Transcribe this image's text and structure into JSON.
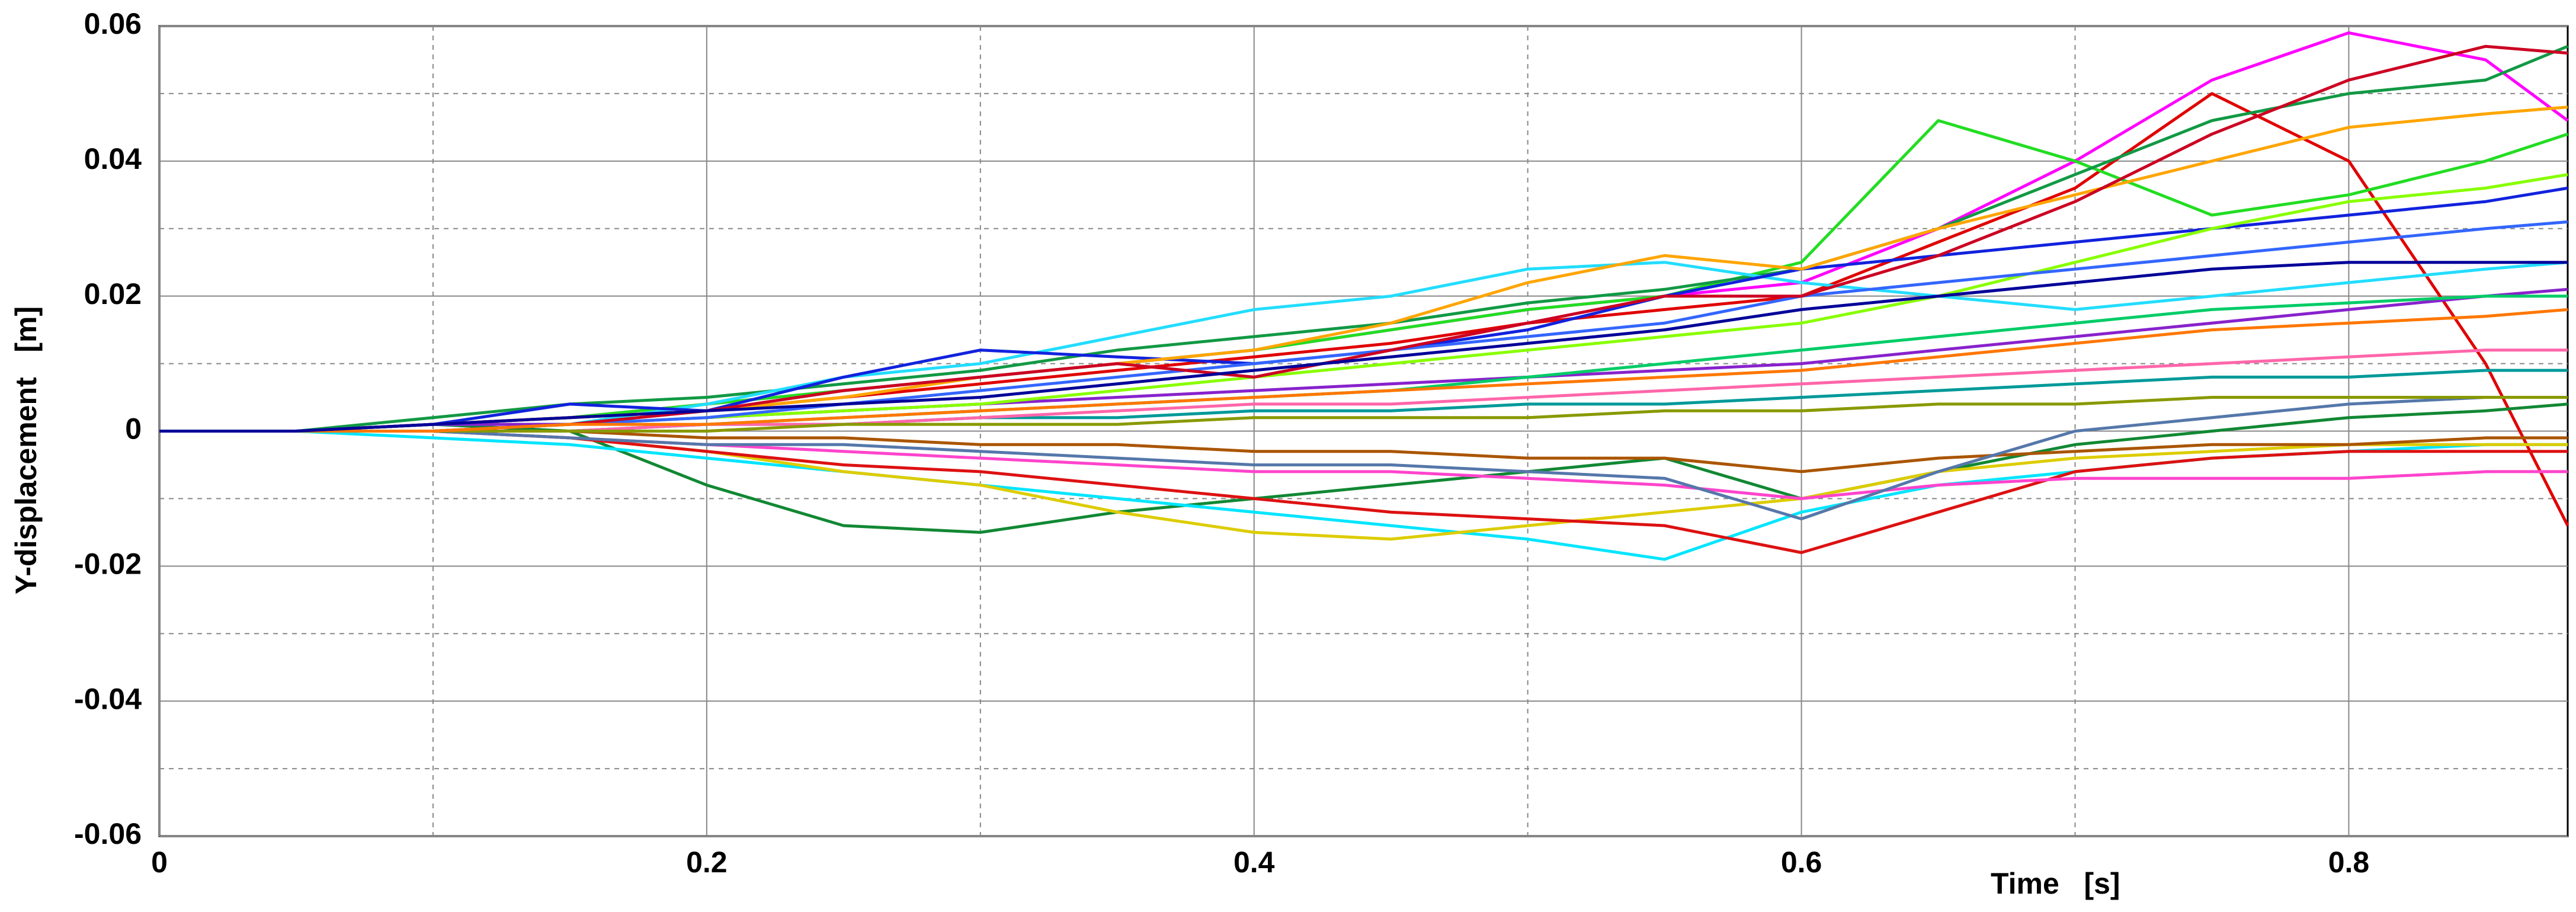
{
  "chart_data": {
    "type": "line",
    "xlabel": "Time   [s]",
    "ylabel": "Y-displacement   [m]",
    "xlim": [
      0,
      0.88
    ],
    "ylim": [
      -0.06,
      0.06
    ],
    "xticks": [
      0,
      0.2,
      0.4,
      0.6,
      0.8
    ],
    "yticks": [
      -0.06,
      -0.04,
      -0.02,
      0,
      0.02,
      0.04,
      0.06
    ],
    "xminorticks": [
      0.1,
      0.3,
      0.5,
      0.7
    ],
    "yminorticks": [
      -0.05,
      -0.03,
      -0.01,
      0.01,
      0.03,
      0.05
    ],
    "grid": true,
    "x": [
      0,
      0.05,
      0.1,
      0.15,
      0.2,
      0.25,
      0.3,
      0.35,
      0.4,
      0.45,
      0.5,
      0.55,
      0.6,
      0.65,
      0.7,
      0.75,
      0.8,
      0.85,
      0.88
    ],
    "series": [
      {
        "color": "#ff00ff",
        "values": [
          0,
          0,
          0.001,
          0.002,
          0.004,
          0.006,
          0.008,
          0.01,
          0.012,
          0.015,
          0.018,
          0.02,
          0.022,
          0.03,
          0.04,
          0.052,
          0.059,
          0.055,
          0.046
        ]
      },
      {
        "color": "#e00000",
        "values": [
          0,
          0,
          0.001,
          0.002,
          0.003,
          0.005,
          0.007,
          0.009,
          0.011,
          0.013,
          0.016,
          0.018,
          0.02,
          0.028,
          0.036,
          0.05,
          0.04,
          0.01,
          -0.014
        ]
      },
      {
        "color": "#22dd22",
        "values": [
          0,
          0,
          0.001,
          0.002,
          0.004,
          0.006,
          0.008,
          0.01,
          0.012,
          0.015,
          0.018,
          0.02,
          0.025,
          0.046,
          0.04,
          0.032,
          0.035,
          0.04,
          0.044
        ]
      },
      {
        "color": "#118833",
        "values": [
          0,
          0,
          0.001,
          0,
          -0.008,
          -0.014,
          -0.015,
          -0.012,
          -0.01,
          -0.008,
          -0.006,
          -0.004,
          -0.01,
          -0.006,
          -0.002,
          0,
          0.002,
          0.003,
          0.004
        ]
      },
      {
        "color": "#119944",
        "values": [
          0,
          0,
          0.002,
          0.004,
          0.005,
          0.007,
          0.009,
          0.012,
          0.014,
          0.016,
          0.019,
          0.021,
          0.024,
          0.03,
          0.038,
          0.046,
          0.05,
          0.052,
          0.057
        ]
      },
      {
        "color": "#22ddff",
        "values": [
          0,
          0,
          0.001,
          0.001,
          0.004,
          0.008,
          0.01,
          0.014,
          0.018,
          0.02,
          0.024,
          0.025,
          0.022,
          0.02,
          0.018,
          0.02,
          0.022,
          0.024,
          0.025
        ]
      },
      {
        "color": "#00e5ff",
        "values": [
          0,
          0,
          -0.001,
          -0.002,
          -0.004,
          -0.006,
          -0.008,
          -0.01,
          -0.012,
          -0.014,
          -0.016,
          -0.019,
          -0.012,
          -0.008,
          -0.006,
          -0.004,
          -0.003,
          -0.002,
          -0.002
        ]
      },
      {
        "color": "#ddcc00",
        "values": [
          0,
          0,
          0,
          -0.001,
          -0.003,
          -0.006,
          -0.008,
          -0.012,
          -0.015,
          -0.016,
          -0.014,
          -0.012,
          -0.01,
          -0.006,
          -0.004,
          -0.003,
          -0.002,
          -0.002,
          -0.002
        ]
      },
      {
        "color": "#1122dd",
        "values": [
          0,
          0,
          0.001,
          0.004,
          0.003,
          0.008,
          0.012,
          0.011,
          0.01,
          0.012,
          0.015,
          0.02,
          0.024,
          0.026,
          0.028,
          0.03,
          0.032,
          0.034,
          0.036
        ]
      },
      {
        "color": "#dd1111",
        "values": [
          0,
          0,
          0,
          -0.001,
          -0.003,
          -0.005,
          -0.006,
          -0.008,
          -0.01,
          -0.012,
          -0.013,
          -0.014,
          -0.018,
          -0.012,
          -0.006,
          -0.004,
          -0.003,
          -0.003,
          -0.003
        ]
      },
      {
        "color": "#ffa500",
        "values": [
          0,
          0,
          0.001,
          0.002,
          0.003,
          0.005,
          0.008,
          0.01,
          0.012,
          0.016,
          0.022,
          0.026,
          0.024,
          0.03,
          0.035,
          0.04,
          0.045,
          0.047,
          0.048
        ]
      },
      {
        "color": "#ff44cc",
        "values": [
          0,
          0,
          0,
          -0.001,
          -0.002,
          -0.003,
          -0.004,
          -0.005,
          -0.006,
          -0.006,
          -0.007,
          -0.008,
          -0.01,
          -0.008,
          -0.007,
          -0.007,
          -0.007,
          -0.006,
          -0.006
        ]
      },
      {
        "color": "#8822cc",
        "values": [
          0,
          0,
          0.001,
          0.001,
          0.002,
          0.003,
          0.004,
          0.005,
          0.006,
          0.007,
          0.008,
          0.009,
          0.01,
          0.012,
          0.014,
          0.016,
          0.018,
          0.02,
          0.021
        ]
      },
      {
        "color": "#88ff00",
        "values": [
          0,
          0,
          0,
          0.001,
          0.002,
          0.003,
          0.004,
          0.006,
          0.008,
          0.01,
          0.012,
          0.014,
          0.016,
          0.02,
          0.025,
          0.03,
          0.034,
          0.036,
          0.038
        ]
      },
      {
        "color": "#009999",
        "values": [
          0,
          0,
          0,
          0,
          0.001,
          0.001,
          0.002,
          0.002,
          0.003,
          0.003,
          0.004,
          0.004,
          0.005,
          0.006,
          0.007,
          0.008,
          0.008,
          0.009,
          0.009
        ]
      },
      {
        "color": "#aa5500",
        "values": [
          0,
          0,
          0,
          0,
          -0.001,
          -0.001,
          -0.002,
          -0.002,
          -0.003,
          -0.003,
          -0.004,
          -0.004,
          -0.006,
          -0.004,
          -0.003,
          -0.002,
          -0.002,
          -0.001,
          -0.001
        ]
      },
      {
        "color": "#3366ff",
        "values": [
          0,
          0,
          0,
          0.001,
          0.002,
          0.004,
          0.006,
          0.008,
          0.01,
          0.012,
          0.014,
          0.016,
          0.02,
          0.022,
          0.024,
          0.026,
          0.028,
          0.03,
          0.031
        ]
      },
      {
        "color": "#cc0022",
        "values": [
          0,
          0,
          0,
          0.001,
          0.003,
          0.006,
          0.008,
          0.01,
          0.008,
          0.012,
          0.016,
          0.02,
          0.02,
          0.026,
          0.034,
          0.044,
          0.052,
          0.057,
          0.056
        ]
      },
      {
        "color": "#00cc66",
        "values": [
          0,
          0,
          0,
          0,
          0.001,
          0.002,
          0.003,
          0.004,
          0.005,
          0.006,
          0.008,
          0.01,
          0.012,
          0.014,
          0.016,
          0.018,
          0.019,
          0.02,
          0.02
        ]
      },
      {
        "color": "#ff66aa",
        "values": [
          0,
          0,
          0,
          0,
          0.001,
          0.001,
          0.002,
          0.003,
          0.004,
          0.004,
          0.005,
          0.006,
          0.007,
          0.008,
          0.009,
          0.01,
          0.011,
          0.012,
          0.012
        ]
      },
      {
        "color": "#5577aa",
        "values": [
          0,
          0,
          0,
          -0.001,
          -0.002,
          -0.002,
          -0.003,
          -0.004,
          -0.005,
          -0.005,
          -0.006,
          -0.007,
          -0.013,
          -0.006,
          0,
          0.002,
          0.004,
          0.005,
          0.005
        ]
      },
      {
        "color": "#889900",
        "values": [
          0,
          0,
          0,
          0,
          0,
          0.001,
          0.001,
          0.001,
          0.002,
          0.002,
          0.002,
          0.003,
          0.003,
          0.004,
          0.004,
          0.005,
          0.005,
          0.005,
          0.005
        ]
      },
      {
        "color": "#ff7700",
        "values": [
          0,
          0,
          0,
          0.001,
          0.001,
          0.002,
          0.003,
          0.004,
          0.005,
          0.006,
          0.007,
          0.008,
          0.009,
          0.011,
          0.013,
          0.015,
          0.016,
          0.017,
          0.018
        ]
      },
      {
        "color": "#000099",
        "values": [
          0,
          0,
          0.001,
          0.002,
          0.003,
          0.004,
          0.005,
          0.007,
          0.009,
          0.011,
          0.013,
          0.015,
          0.018,
          0.02,
          0.022,
          0.024,
          0.025,
          0.025,
          0.025
        ]
      }
    ]
  }
}
